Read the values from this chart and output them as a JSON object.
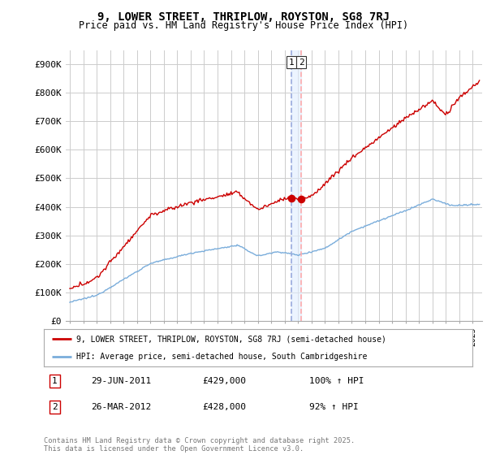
{
  "title": "9, LOWER STREET, THRIPLOW, ROYSTON, SG8 7RJ",
  "subtitle": "Price paid vs. HM Land Registry's House Price Index (HPI)",
  "ylim": [
    0,
    950000
  ],
  "yticks": [
    0,
    100000,
    200000,
    300000,
    400000,
    500000,
    600000,
    700000,
    800000,
    900000
  ],
  "ytick_labels": [
    "£0",
    "£100K",
    "£200K",
    "£300K",
    "£400K",
    "£500K",
    "£600K",
    "£700K",
    "£800K",
    "£900K"
  ],
  "background_color": "#ffffff",
  "grid_color": "#cccccc",
  "sale1_date": 2011.49,
  "sale1_price": 429000,
  "sale2_date": 2012.23,
  "sale2_price": 428000,
  "legend_label_red": "9, LOWER STREET, THRIPLOW, ROYSTON, SG8 7RJ (semi-detached house)",
  "legend_label_blue": "HPI: Average price, semi-detached house, South Cambridgeshire",
  "table_rows": [
    {
      "num": "1",
      "date": "29-JUN-2011",
      "price": "£429,000",
      "pct": "100% ↑ HPI"
    },
    {
      "num": "2",
      "date": "26-MAR-2012",
      "price": "£428,000",
      "pct": "92% ↑ HPI"
    }
  ],
  "footnote": "Contains HM Land Registry data © Crown copyright and database right 2025.\nThis data is licensed under the Open Government Licence v3.0.",
  "red_color": "#cc0000",
  "blue_color": "#7aaddb",
  "vline1_color": "#aaccff",
  "vline2_color": "#ffaaaa",
  "xstart": 1995,
  "xend": 2025
}
